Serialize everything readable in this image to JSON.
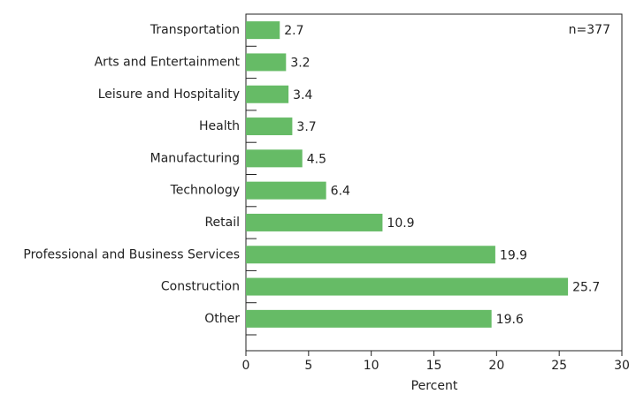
{
  "chart_data": {
    "type": "barh",
    "categories": [
      "Transportation",
      "Arts and Entertainment",
      "Leisure and Hospitality",
      "Health",
      "Manufacturing",
      "Technology",
      "Retail",
      "Professional and Business Services",
      "Construction",
      "Other"
    ],
    "values": [
      2.7,
      3.2,
      3.4,
      3.7,
      4.5,
      6.4,
      10.9,
      19.9,
      25.7,
      19.6
    ],
    "color": "#66bb66",
    "xlabel": "Percent",
    "annotation": "n=377",
    "xlim": [
      0,
      30
    ],
    "xticks": [
      0,
      5,
      10,
      15,
      20,
      25,
      30
    ]
  }
}
